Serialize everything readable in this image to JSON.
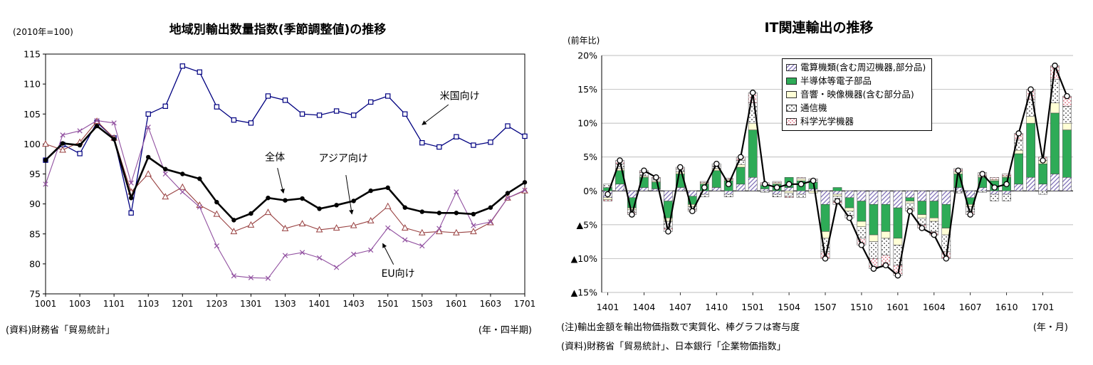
{
  "left_chart": {
    "y_axis_unit": "(2010年=100)",
    "title": "地域別輸出数量指数(季節調整値)の推移",
    "x_axis_unit": "(年・四半期)",
    "source": "(資料)財務省「貿易統計」",
    "chart_data": {
      "type": "line",
      "ylim": [
        75,
        115
      ],
      "ytick_step": 5,
      "y_tick_labels": [
        "75",
        "80",
        "85",
        "90",
        "95",
        "100",
        "105",
        "110",
        "115"
      ],
      "x": [
        "1001",
        "1002",
        "1003",
        "1004",
        "1101",
        "1102",
        "1103",
        "1104",
        "1201",
        "1202",
        "1203",
        "1204",
        "1301",
        "1302",
        "1303",
        "1304",
        "1401",
        "1402",
        "1403",
        "1404",
        "1501",
        "1502",
        "1503",
        "1504",
        "1601",
        "1602",
        "1603",
        "1604",
        "1701"
      ],
      "x_label_every": 2,
      "x_tick_labels": [
        "1001",
        "1003",
        "1101",
        "1103",
        "1201",
        "1203",
        "1301",
        "1303",
        "1401",
        "1403",
        "1501",
        "1503",
        "1601",
        "1603",
        "1701"
      ],
      "grid": false,
      "series": [
        {
          "name": "米国向け",
          "color": "#000080",
          "marker": "square",
          "line_width": 1.3,
          "values": [
            97.3,
            99.9,
            98.4,
            103.6,
            101.0,
            88.5,
            105.0,
            106.3,
            113.0,
            112.0,
            106.2,
            104.0,
            103.5,
            108.0,
            107.3,
            105.0,
            104.8,
            105.5,
            104.8,
            107.0,
            108.0,
            105.0,
            100.2,
            99.5,
            101.2,
            99.8,
            100.3,
            103.0,
            101.3
          ]
        },
        {
          "name": "アジア向け",
          "color": "#984040",
          "marker": "triangle",
          "line_width": 1.1,
          "values": [
            100.0,
            99.0,
            100.3,
            103.8,
            101.0,
            92.0,
            95.0,
            91.2,
            92.8,
            89.8,
            88.3,
            85.4,
            86.5,
            88.6,
            85.9,
            86.7,
            85.7,
            86.0,
            86.4,
            87.2,
            89.6,
            86.0,
            85.2,
            85.4,
            85.2,
            85.4,
            86.9,
            91.0,
            92.2
          ]
        },
        {
          "name": "EU向け",
          "color": "#9150a0",
          "marker": "x",
          "line_width": 1.1,
          "values": [
            93.3,
            101.5,
            102.2,
            103.9,
            103.5,
            93.5,
            102.8,
            95.0,
            92.0,
            89.5,
            83.0,
            78.0,
            77.7,
            77.6,
            81.4,
            81.9,
            81.0,
            79.4,
            81.6,
            82.3,
            86.0,
            84.0,
            83.0,
            85.9,
            92.0,
            86.4,
            87.0,
            91.0,
            92.3
          ]
        },
        {
          "name": "全体",
          "color": "#000000",
          "marker": "circle",
          "line_width": 2.6,
          "values": [
            97.3,
            100.1,
            99.8,
            103.0,
            100.8,
            91.0,
            97.8,
            95.8,
            95.0,
            94.2,
            90.3,
            87.3,
            88.4,
            91.0,
            90.6,
            90.9,
            89.2,
            89.8,
            90.5,
            92.2,
            92.7,
            89.4,
            88.7,
            88.5,
            88.5,
            88.3,
            89.4,
            91.8,
            93.6
          ]
        }
      ],
      "annotations": [
        {
          "text": "米国向け",
          "label_x": 24.2,
          "label_y": 108.0,
          "target_x": 22.0,
          "target_y": 103.2
        },
        {
          "text": "全体",
          "label_x": 13.4,
          "label_y": 97.8,
          "target_x": 13.9,
          "target_y": 91.8
        },
        {
          "text": "アジア向け",
          "label_x": 17.4,
          "label_y": 97.6,
          "target_x": 17.9,
          "target_y": 88.3
        },
        {
          "text": "EU向け",
          "label_x": 20.6,
          "label_y": 78.4,
          "target_x": 19.7,
          "target_y": 83.4
        }
      ]
    }
  },
  "right_chart": {
    "y_axis_unit": "(前年比)",
    "title": "IT関連輸出の推移",
    "x_axis_unit": "(年・月)",
    "note": "(注)輸出金額を輸出物価指数で実質化、棒グラフは寄与度",
    "source": "(資料)財務省「貿易統計」、日本銀行「企業物価指数」",
    "palette": {
      "computer_hatch_stripe": "#8070b8",
      "semiconductor_green": "#2eab57",
      "audio_yellow": "#ffffd6",
      "telecom_dot": "#333333",
      "optical_pink": "#e07a8a",
      "total_line": "#000000",
      "grid": "#a8a8a8"
    },
    "chart_data": {
      "type": "stacked-bar+line",
      "ylim": [
        -15,
        20
      ],
      "ytick_step": 5,
      "negative_prefix": "▲",
      "y_tick_labels": [
        "20%",
        "15%",
        "10%",
        "5%",
        "0%",
        "▲5%",
        "▲10%",
        "▲15%"
      ],
      "grid": true,
      "legend_position": "upper-right-inside",
      "categories": [
        "1401",
        "1402",
        "1403",
        "1404",
        "1405",
        "1406",
        "1407",
        "1408",
        "1409",
        "1410",
        "1411",
        "1412",
        "1501",
        "1502",
        "1503",
        "1504",
        "1505",
        "1506",
        "1507",
        "1508",
        "1509",
        "1510",
        "1511",
        "1512",
        "1601",
        "1602",
        "1603",
        "1604",
        "1605",
        "1606",
        "1607",
        "1608",
        "1609",
        "1610",
        "1611",
        "1612",
        "1701",
        "1702",
        "1703"
      ],
      "x_label_every": 3,
      "x_tick_labels": [
        "1401",
        "1404",
        "1407",
        "1410",
        "1501",
        "1504",
        "1507",
        "1510",
        "1601",
        "1604",
        "1607",
        "1610",
        "1701"
      ],
      "series": [
        {
          "name": "電算機類(含む周辺機器,部分品)",
          "fill": "hatch",
          "values": [
            -1.0,
            1.0,
            -1.0,
            0.5,
            0.3,
            -1.5,
            0.5,
            -0.8,
            -0.5,
            0.5,
            -0.5,
            1.0,
            2.0,
            0.3,
            -0.5,
            0.5,
            -0.5,
            0.3,
            -2.0,
            -0.5,
            -1.0,
            -1.5,
            -2.0,
            -2.0,
            -2.5,
            -1.0,
            -1.5,
            -1.5,
            -2.0,
            0.5,
            -1.0,
            0.5,
            -0.5,
            -0.5,
            1.0,
            2.0,
            1.0,
            2.5,
            2.0
          ]
        },
        {
          "name": "半導体等電子部品",
          "fill": "green",
          "values": [
            0.5,
            2.0,
            -1.5,
            1.5,
            1.0,
            -2.5,
            2.0,
            -1.2,
            1.0,
            2.5,
            1.5,
            2.5,
            7.0,
            0.5,
            1.0,
            1.5,
            1.5,
            1.0,
            -4.0,
            0.5,
            -1.5,
            -3.0,
            -4.5,
            -4.0,
            -4.5,
            -0.5,
            -2.0,
            -2.5,
            -3.5,
            2.0,
            -1.0,
            1.5,
            1.5,
            2.0,
            4.5,
            8.0,
            3.0,
            9.0,
            7.0
          ]
        },
        {
          "name": "音響・映像機器(含む部分品)",
          "fill": "yellow",
          "values": [
            -0.3,
            0.3,
            -0.3,
            0.2,
            0.2,
            -0.5,
            0.3,
            -0.3,
            0.2,
            0.3,
            0.2,
            0.4,
            1.0,
            0.1,
            0.2,
            -0.3,
            0.3,
            -0.3,
            -1.0,
            -0.3,
            -0.5,
            -0.8,
            -1.0,
            -1.0,
            -1.0,
            -0.3,
            -0.5,
            -0.5,
            -1.0,
            0.3,
            -0.3,
            0.2,
            0.2,
            0.2,
            0.5,
            1.0,
            0.5,
            1.5,
            1.0
          ]
        },
        {
          "name": "通信機",
          "fill": "dots",
          "values": [
            0.5,
            0.7,
            -0.4,
            0.5,
            0.3,
            -1.0,
            0.4,
            -0.4,
            -0.4,
            0.4,
            -0.4,
            0.6,
            3.0,
            -0.2,
            -0.4,
            -0.5,
            -0.5,
            0.3,
            -2.0,
            -0.8,
            -0.6,
            -1.7,
            -2.5,
            -2.5,
            -3.0,
            -0.8,
            -1.0,
            -1.5,
            -2.5,
            -0.3,
            -0.8,
            -0.2,
            -1.0,
            -1.0,
            1.5,
            2.5,
            -0.5,
            3.5,
            2.5
          ]
        },
        {
          "name": "科学光学機器",
          "fill": "pinkdots",
          "values": [
            -0.2,
            0.5,
            -0.3,
            0.3,
            0.2,
            -0.5,
            0.3,
            -0.3,
            0.2,
            0.3,
            0.2,
            0.5,
            1.5,
            0.3,
            0.2,
            -0.2,
            0.2,
            0.2,
            -1.0,
            -0.4,
            -0.4,
            -1.0,
            -1.5,
            -1.5,
            -1.5,
            -0.4,
            -0.5,
            -0.5,
            -1.0,
            0.5,
            -0.4,
            0.5,
            0.3,
            0.3,
            1.0,
            1.5,
            0.5,
            2.0,
            1.5
          ]
        }
      ],
      "line": {
        "values": [
          -0.5,
          4.5,
          -3.5,
          3.0,
          2.0,
          -6.0,
          3.5,
          -3.0,
          0.5,
          4.0,
          1.0,
          5.0,
          14.5,
          1.0,
          0.5,
          1.0,
          1.0,
          1.5,
          -10.0,
          -1.5,
          -4.0,
          -8.0,
          -11.5,
          -11.0,
          -12.5,
          -3.0,
          -5.5,
          -6.5,
          -10.0,
          3.0,
          -3.5,
          2.5,
          0.5,
          1.0,
          8.5,
          15.0,
          4.5,
          18.5,
          14.0
        ]
      }
    }
  }
}
